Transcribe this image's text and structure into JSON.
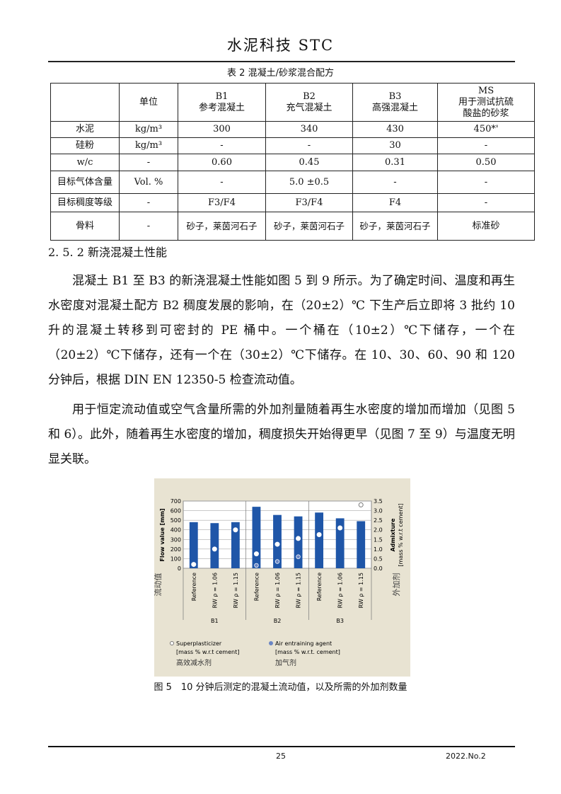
{
  "header": {
    "journal": "水泥科技 STC"
  },
  "table": {
    "caption": "表 2 混凝土/砂浆混合配方",
    "header": [
      "",
      "单位",
      "B1\n参考混凝土",
      "B2\n充气混凝土",
      "B3\n高强混凝土",
      "MS\n用于测试抗硫\n酸盐的砂浆"
    ],
    "rows": [
      [
        "水泥",
        "kg/m³",
        "300",
        "340",
        "430",
        "450*'"
      ],
      [
        "硅粉",
        "kg/m³",
        "-",
        "-",
        "30",
        "-"
      ],
      [
        "w/c",
        "-",
        "0.60",
        "0.45",
        "0.31",
        "0.50"
      ],
      [
        "目标气体含量",
        "Vol. %",
        "-",
        "5.0 ±0.5",
        "-",
        "-"
      ],
      [
        "目标稠度等级",
        "-",
        "F3/F4",
        "F3/F4",
        "F4",
        "-"
      ],
      [
        "骨料",
        "-",
        "砂子，莱茵河石子",
        "砂子，莱茵河石子",
        "砂子，莱茵河石子",
        "标准砂"
      ]
    ]
  },
  "section": {
    "title": "2. 5. 2  新浇混凝土性能",
    "paragraphs": [
      "混凝土 B1 至 B3 的新浇混凝土性能如图 5 到 9 所示。为了确定时间、温度和再生水密度对混凝土配方 B2 稠度发展的影响，在（20±2）℃ 下生产后立即将 3 批约 10 升的混凝土转移到可密封的 PE 桶中。一个桶在（10±2）℃下储存，一个在（20±2）℃下储存，还有一个在（30±2）℃下储存。在 10、30、60、90 和 120 分钟后，根据 DIN EN 12350-5 检查流动值。",
      "用于恒定流动值或空气含量所需的外加剂量随着再生水密度的增加而增加（见图 5 和 6）。此外，随着再生水密度的增加，稠度损失开始得更早（见图 7 至 9）与温度无明显关联。"
    ]
  },
  "chart_data": {
    "type": "bar",
    "categories": [
      "Reference",
      "RW ρ = 1.06",
      "RW ρ = 1.15",
      "Reference",
      "RW ρ = 1.06",
      "RW ρ = 1.15",
      "Reference",
      "RW ρ = 1.06",
      "RW ρ = 1.15"
    ],
    "groups": [
      "B1",
      "B2",
      "B3"
    ],
    "ylabel": "Flow value [mm]",
    "ylabel_cn": "流动值",
    "ylim": [
      0,
      700
    ],
    "yticks": [
      0,
      100,
      200,
      300,
      400,
      500,
      600,
      700
    ],
    "y2label": "Admixture\n[mass % w.r.t cement]",
    "y2label_cn": "外加剂",
    "y2lim": [
      0,
      3.5
    ],
    "y2ticks": [
      "0.0",
      "0.5",
      "1.0",
      "1.5",
      "2.0",
      "2.5",
      "3.0",
      "3.5"
    ],
    "series": [
      {
        "name": "Flow value",
        "values": [
          480,
          470,
          480,
          640,
          555,
          540,
          580,
          520,
          490
        ],
        "color": "#1f56a8"
      },
      {
        "name": "Superplasticizer",
        "values": [
          0.2,
          1.0,
          2.0,
          0.75,
          1.25,
          1.55,
          1.75,
          2.1,
          3.3
        ],
        "axis": "right"
      },
      {
        "name": "Air entraining agent",
        "values": [
          null,
          null,
          null,
          0.15,
          0.35,
          0.6,
          null,
          null,
          null
        ],
        "axis": "right",
        "color": "#6b86c4"
      }
    ],
    "legend": [
      {
        "label": "Superplasticizer\n[mass % w.r.t cement]",
        "label_cn": "高效减水剂"
      },
      {
        "label": "Air entraining agent\n[mass % w.r.t. cement]",
        "label_cn": "加气剂"
      }
    ],
    "caption": "图 5　10 分钟后测定的混凝土流动值，以及所需的外加剂数量"
  },
  "footer": {
    "page": "25",
    "issue": "2022.No.2"
  }
}
